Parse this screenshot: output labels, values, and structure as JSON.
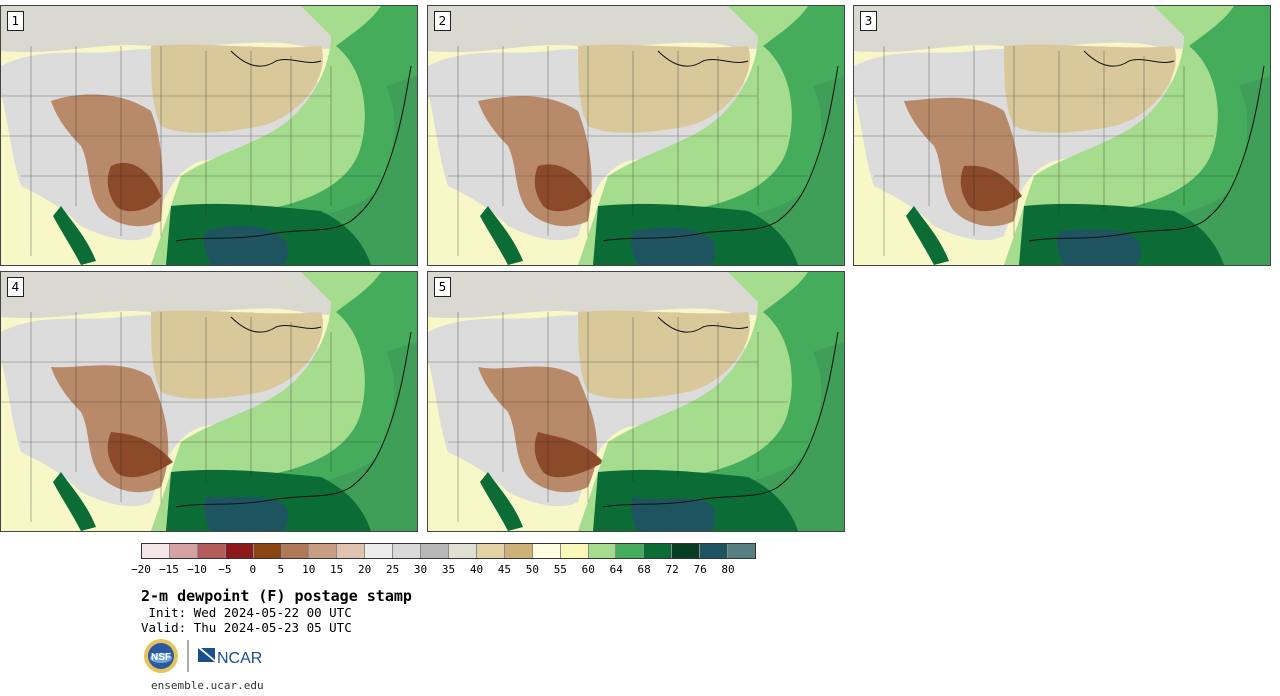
{
  "panels": [
    {
      "label": "1"
    },
    {
      "label": "2"
    },
    {
      "label": "3"
    },
    {
      "label": "4"
    },
    {
      "label": "5"
    }
  ],
  "colorbar": {
    "colors": [
      "#f3e6e6",
      "#d4a2a2",
      "#b35a5a",
      "#8c1a1a",
      "#8b4513",
      "#b07a5a",
      "#c99e80",
      "#dfc3ae",
      "#ececec",
      "#d9d9d9",
      "#b8b8b8",
      "#e0e0d2",
      "#e2d2a6",
      "#cdb177",
      "#fdfde2",
      "#f8f8b8",
      "#a6dc8d",
      "#45ac5c",
      "#0c6c36",
      "#073d22",
      "#1d5460",
      "#567f82"
    ],
    "ticks": [
      "−20",
      "−15",
      "−10",
      "−5",
      "0",
      "5",
      "10",
      "15",
      "20",
      "25",
      "30",
      "35",
      "40",
      "45",
      "50",
      "55",
      "60",
      "64",
      "68",
      "72",
      "76",
      "80"
    ]
  },
  "title": "2-m dewpoint (F) postage stamp",
  "init": " Init: Wed 2024-05-22 00 UTC",
  "valid": "Valid: Thu 2024-05-23 05 UTC",
  "logos": {
    "nsf": "NSF",
    "ncar": "NCAR"
  },
  "url": "ensemble.ucar.edu",
  "map_colors": {
    "ocean_pacific": "#f7f7c8",
    "canada_gray": "#d9d9d2",
    "plains_tan": "#d8c89a",
    "west_gray": "#dcdcdc",
    "sw_brown": "#b98a6a",
    "sw_dark": "#8b4a2a",
    "east_light": "#a6dc8d",
    "east_mid": "#45ac5c",
    "gulf_dark": "#0c6c36",
    "gulf_water": "#1d5460",
    "atlantic": "#3f9e58"
  }
}
